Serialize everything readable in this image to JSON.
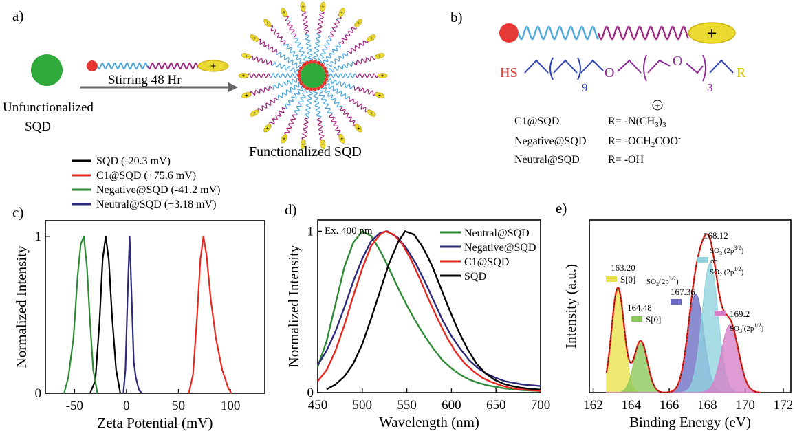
{
  "panel_a": {
    "label": "a)",
    "unfunctionalized": [
      "Unfunctionalized",
      "SQD"
    ],
    "arrow_text": "Stirring 48 Hr",
    "functionalized": "Functionalized SQD",
    "plus": "+"
  },
  "panel_b": {
    "label": "b)",
    "plus": "+",
    "formula": {
      "hs": "HS",
      "n9": "9",
      "o1": "O",
      "o2": "O",
      "n3": "3",
      "r": "R"
    },
    "rows": [
      {
        "name": "C1@SQD",
        "r_prefix": "R= -N(CH",
        "sub": "3",
        "r_after": ")",
        "sub2": "3",
        "charge": "+"
      },
      {
        "name": "Negative@SQD",
        "r_prefix": "R= -OCH",
        "sub": "2",
        "r_after": "COO",
        "sup": "-"
      },
      {
        "name": "Neutral@SQD",
        "r_prefix": "R= -OH"
      }
    ],
    "colors": {
      "red": "#e53935",
      "blue": "#2a3fb5",
      "purple": "#8e2a99",
      "yellow": "#d6c400"
    }
  },
  "legend_c": [
    {
      "label": "SQD (-20.3 mV)",
      "color": "#000000"
    },
    {
      "label": "C1@SQD (+75.6 mV)",
      "color": "#e8281e"
    },
    {
      "label": "Negative@SQD (-41.2 mV)",
      "color": "#2e8b35"
    },
    {
      "label": "Neutral@SQD (+3.18 mV)",
      "color": "#2b2a7a"
    }
  ],
  "chart_data": [
    {
      "panel": "c)",
      "type": "line",
      "xlabel": "Zeta Potential (mV)",
      "ylabel": "Normalized Intensity",
      "xlim": [
        -78,
        133
      ],
      "ylim": [
        0,
        1.1
      ],
      "xticks": [
        -50,
        0,
        50,
        100
      ],
      "yticks": [
        0,
        1
      ],
      "series": [
        {
          "name": "SQD (-20.3 mV)",
          "color": "#000000",
          "points": [
            [
              -35,
              0
            ],
            [
              -30,
              0.08
            ],
            [
              -26,
              0.45
            ],
            [
              -23,
              0.85
            ],
            [
              -20,
              1.0
            ],
            [
              -17,
              0.85
            ],
            [
              -14,
              0.5
            ],
            [
              -10,
              0.15
            ],
            [
              -6,
              0
            ]
          ]
        },
        {
          "name": "C1@SQD (+75.6 mV)",
          "color": "#e8281e",
          "points": [
            [
              60,
              0
            ],
            [
              64,
              0.12
            ],
            [
              68,
              0.5
            ],
            [
              71,
              0.85
            ],
            [
              74,
              1.0
            ],
            [
              77,
              0.88
            ],
            [
              81,
              0.6
            ],
            [
              86,
              0.35
            ],
            [
              92,
              0.15
            ],
            [
              98,
              0.03
            ],
            [
              101,
              0
            ]
          ]
        },
        {
          "name": "Negative@SQD (-41.2 mV)",
          "color": "#2e8b35",
          "points": [
            [
              -60,
              0
            ],
            [
              -56,
              0.1
            ],
            [
              -51,
              0.35
            ],
            [
              -47,
              0.75
            ],
            [
              -44,
              0.95
            ],
            [
              -41,
              1.0
            ],
            [
              -38,
              0.8
            ],
            [
              -35,
              0.45
            ],
            [
              -32,
              0.15
            ],
            [
              -28,
              0
            ]
          ]
        },
        {
          "name": "Neutral@SQD (+3.18 mV)",
          "color": "#2b2a7a",
          "points": [
            [
              -3,
              0
            ],
            [
              -1,
              0.15
            ],
            [
              1,
              0.6
            ],
            [
              3,
              1.0
            ],
            [
              5,
              0.6
            ],
            [
              7,
              0.2
            ],
            [
              9,
              0.1
            ],
            [
              12,
              0.02
            ],
            [
              15,
              0
            ]
          ]
        }
      ]
    },
    {
      "panel": "d)",
      "type": "line",
      "xlabel": "Wavelength (nm)",
      "ylabel": "Normalized Intensity",
      "annotation": "Ex. 400 nm",
      "xlim": [
        450,
        700
      ],
      "ylim": [
        0,
        1.07
      ],
      "xticks": [
        450,
        500,
        550,
        600,
        650,
        700
      ],
      "yticks": [
        0,
        1
      ],
      "series": [
        {
          "name": "Neutral@SQD",
          "color": "#2e8b35",
          "points": [
            [
              450,
              0.16
            ],
            [
              460,
              0.32
            ],
            [
              470,
              0.55
            ],
            [
              480,
              0.78
            ],
            [
              490,
              0.93
            ],
            [
              500,
              1.0
            ],
            [
              510,
              0.97
            ],
            [
              520,
              0.88
            ],
            [
              530,
              0.77
            ],
            [
              540,
              0.65
            ],
            [
              550,
              0.54
            ],
            [
              560,
              0.44
            ],
            [
              570,
              0.35
            ],
            [
              580,
              0.27
            ],
            [
              590,
              0.2
            ],
            [
              600,
              0.15
            ],
            [
              610,
              0.11
            ],
            [
              620,
              0.08
            ],
            [
              630,
              0.06
            ],
            [
              640,
              0.045
            ],
            [
              650,
              0.035
            ],
            [
              660,
              0.025
            ],
            [
              670,
              0.02
            ],
            [
              680,
              0.015
            ],
            [
              690,
              0.012
            ],
            [
              700,
              0.01
            ]
          ]
        },
        {
          "name": "Negative@SQD",
          "color": "#2b2a7a",
          "points": [
            [
              450,
              0.17
            ],
            [
              460,
              0.26
            ],
            [
              470,
              0.38
            ],
            [
              480,
              0.53
            ],
            [
              490,
              0.69
            ],
            [
              500,
              0.83
            ],
            [
              510,
              0.94
            ],
            [
              520,
              0.99
            ],
            [
              528,
              1.0
            ],
            [
              540,
              0.96
            ],
            [
              550,
              0.89
            ],
            [
              560,
              0.8
            ],
            [
              570,
              0.69
            ],
            [
              580,
              0.57
            ],
            [
              590,
              0.45
            ],
            [
              600,
              0.35
            ],
            [
              610,
              0.27
            ],
            [
              620,
              0.2
            ],
            [
              630,
              0.15
            ],
            [
              640,
              0.115
            ],
            [
              650,
              0.09
            ],
            [
              660,
              0.07
            ],
            [
              670,
              0.06
            ],
            [
              680,
              0.05
            ],
            [
              690,
              0.045
            ],
            [
              700,
              0.04
            ]
          ]
        },
        {
          "name": "C1@SQD",
          "color": "#e8281e",
          "points": [
            [
              450,
              0.07
            ],
            [
              460,
              0.14
            ],
            [
              470,
              0.26
            ],
            [
              480,
              0.42
            ],
            [
              490,
              0.6
            ],
            [
              500,
              0.77
            ],
            [
              510,
              0.91
            ],
            [
              520,
              0.98
            ],
            [
              526,
              1.0
            ],
            [
              535,
              0.98
            ],
            [
              545,
              0.92
            ],
            [
              555,
              0.82
            ],
            [
              565,
              0.7
            ],
            [
              575,
              0.57
            ],
            [
              585,
              0.45
            ],
            [
              595,
              0.34
            ],
            [
              605,
              0.25
            ],
            [
              615,
              0.18
            ],
            [
              625,
              0.13
            ],
            [
              635,
              0.09
            ],
            [
              645,
              0.065
            ],
            [
              655,
              0.045
            ],
            [
              665,
              0.03
            ],
            [
              675,
              0.022
            ],
            [
              685,
              0.016
            ],
            [
              700,
              0.01
            ]
          ]
        },
        {
          "name": "SQD",
          "color": "#000000",
          "points": [
            [
              460,
              0.02
            ],
            [
              470,
              0.05
            ],
            [
              480,
              0.1
            ],
            [
              490,
              0.18
            ],
            [
              500,
              0.3
            ],
            [
              510,
              0.46
            ],
            [
              520,
              0.63
            ],
            [
              530,
              0.8
            ],
            [
              540,
              0.93
            ],
            [
              548,
              1.0
            ],
            [
              558,
              0.98
            ],
            [
              568,
              0.9
            ],
            [
              578,
              0.79
            ],
            [
              588,
              0.65
            ],
            [
              598,
              0.51
            ],
            [
              608,
              0.38
            ],
            [
              618,
              0.27
            ],
            [
              628,
              0.18
            ],
            [
              638,
              0.12
            ],
            [
              648,
              0.08
            ],
            [
              658,
              0.055
            ],
            [
              668,
              0.04
            ],
            [
              678,
              0.03
            ],
            [
              690,
              0.022
            ],
            [
              700,
              0.018
            ]
          ]
        }
      ]
    },
    {
      "panel": "e)",
      "type": "area",
      "xlabel": "Binding Energy (eV)",
      "ylabel": "Intensity (a.u.)",
      "xlim": [
        161.8,
        172.4
      ],
      "ylim": [
        0,
        1.07
      ],
      "xticks": [
        162,
        164,
        166,
        168,
        170,
        172
      ],
      "peaks": [
        {
          "center": 163.3,
          "amp": 0.65,
          "sigma": 0.33,
          "color": "#e9e24a",
          "label": "163.20",
          "species": "S[0]"
        },
        {
          "center": 164.5,
          "amp": 0.32,
          "sigma": 0.35,
          "color": "#8cc85a",
          "label": "164.48",
          "species": "S[0]"
        },
        {
          "center": 167.4,
          "amp": 0.61,
          "sigma": 0.42,
          "color": "#6b6bc4",
          "label": "167.36",
          "species": "SO2(2p3/2)"
        },
        {
          "center": 168.15,
          "amp": 0.8,
          "sigma": 0.42,
          "color": "#8fd3df",
          "label": "168.12",
          "species": "SO3(2p3/2) or SO2(2p1/2)"
        },
        {
          "center": 169.2,
          "amp": 0.42,
          "sigma": 0.45,
          "color": "#d67fc7",
          "label": "169.2",
          "species": "SO3(2p1/2)"
        }
      ],
      "envelope_color": "#e8281e"
    }
  ]
}
